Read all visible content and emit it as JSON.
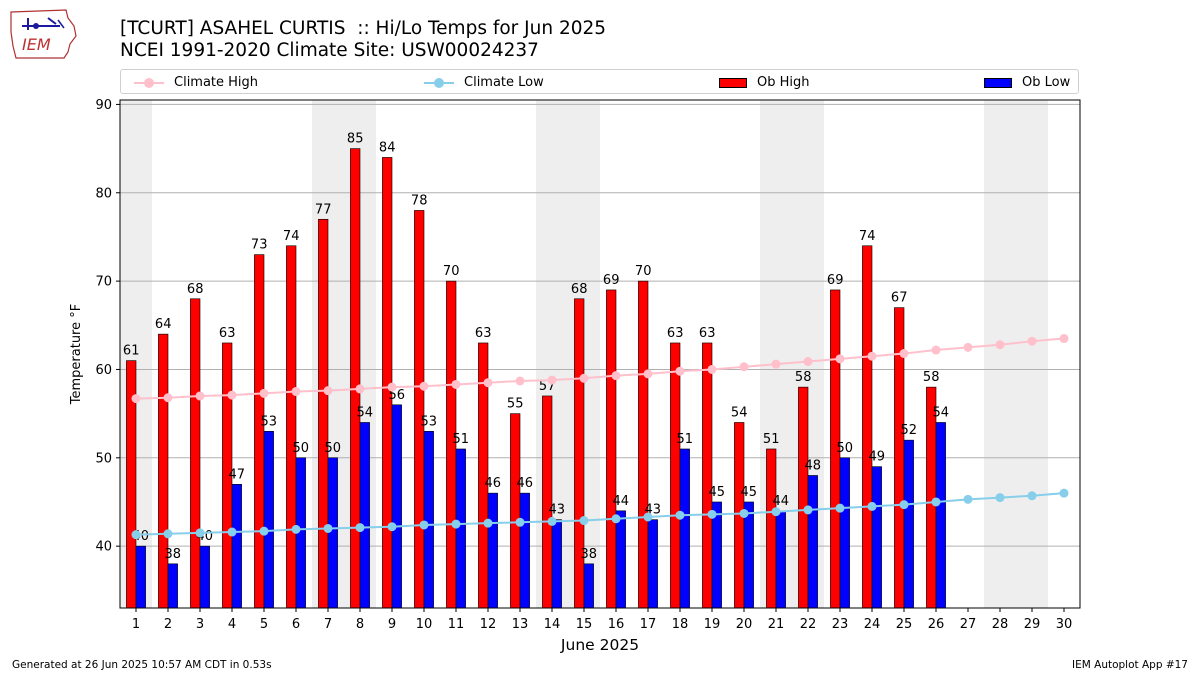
{
  "header": {
    "title_line1": "[TCURT] ASAHEL CURTIS  :: Hi/Lo Temps for Jun 2025",
    "title_line2": "NCEI 1991-2020 Climate Site: USW00024237"
  },
  "logo": {
    "text": "IEM",
    "icon": "iowa-state-weather-logo"
  },
  "legend": {
    "climate_high": "Climate High",
    "climate_low": "Climate Low",
    "ob_high": "Ob High",
    "ob_low": "Ob Low"
  },
  "footer": {
    "generated": "Generated at 26 Jun 2025 10:57 AM CDT in 0.53s",
    "app": "IEM Autoplot App #17"
  },
  "colors": {
    "ob_high": "#ff0000",
    "ob_low": "#0000ff",
    "climate_high": "#ffc0cb",
    "climate_low": "#87ceeb",
    "weekend_band": "#eeeeee",
    "grid": "#b0b0b0"
  },
  "chart_data": {
    "type": "bar",
    "xlabel": "June 2025",
    "ylabel": "Temperature $^\\circ$F",
    "ylabel_display": "Temperature °F",
    "ylim": [
      33,
      90.5
    ],
    "yticks": [
      40,
      50,
      60,
      70,
      80,
      90
    ],
    "categories": [
      "1",
      "2",
      "3",
      "4",
      "5",
      "6",
      "7",
      "8",
      "9",
      "10",
      "11",
      "12",
      "13",
      "14",
      "15",
      "16",
      "17",
      "18",
      "19",
      "20",
      "21",
      "22",
      "23",
      "24",
      "25",
      "26",
      "27",
      "28",
      "29",
      "30"
    ],
    "shaded_days": [
      1,
      7,
      8,
      14,
      15,
      21,
      22,
      28,
      29
    ],
    "grid": "horizontal",
    "legend_position": "top",
    "series": [
      {
        "name": "Ob High",
        "kind": "bar",
        "values": [
          61,
          64,
          68,
          63,
          73,
          74,
          77,
          85,
          84,
          78,
          70,
          63,
          55,
          57,
          68,
          69,
          70,
          63,
          63,
          54,
          51,
          58,
          69,
          74,
          67,
          58,
          null,
          null,
          null,
          null
        ]
      },
      {
        "name": "Ob Low",
        "kind": "bar",
        "values": [
          40,
          38,
          40,
          47,
          53,
          50,
          50,
          54,
          56,
          53,
          51,
          46,
          46,
          43,
          38,
          44,
          43,
          51,
          45,
          45,
          44,
          48,
          50,
          49,
          52,
          54,
          null,
          null,
          null,
          null
        ]
      },
      {
        "name": "Climate High",
        "kind": "line",
        "values": [
          56.7,
          56.8,
          57.0,
          57.1,
          57.3,
          57.5,
          57.6,
          57.8,
          58.0,
          58.1,
          58.3,
          58.5,
          58.7,
          58.8,
          59.0,
          59.3,
          59.5,
          59.8,
          60.0,
          60.3,
          60.6,
          60.9,
          61.2,
          61.5,
          61.8,
          62.2,
          62.5,
          62.8,
          63.2,
          63.5
        ]
      },
      {
        "name": "Climate Low",
        "kind": "line",
        "values": [
          41.3,
          41.4,
          41.5,
          41.6,
          41.7,
          41.9,
          42.0,
          42.1,
          42.2,
          42.4,
          42.5,
          42.6,
          42.7,
          42.8,
          42.9,
          43.1,
          43.3,
          43.5,
          43.6,
          43.7,
          43.9,
          44.1,
          44.3,
          44.5,
          44.7,
          45.0,
          45.3,
          45.5,
          45.7,
          46.0
        ]
      }
    ]
  }
}
